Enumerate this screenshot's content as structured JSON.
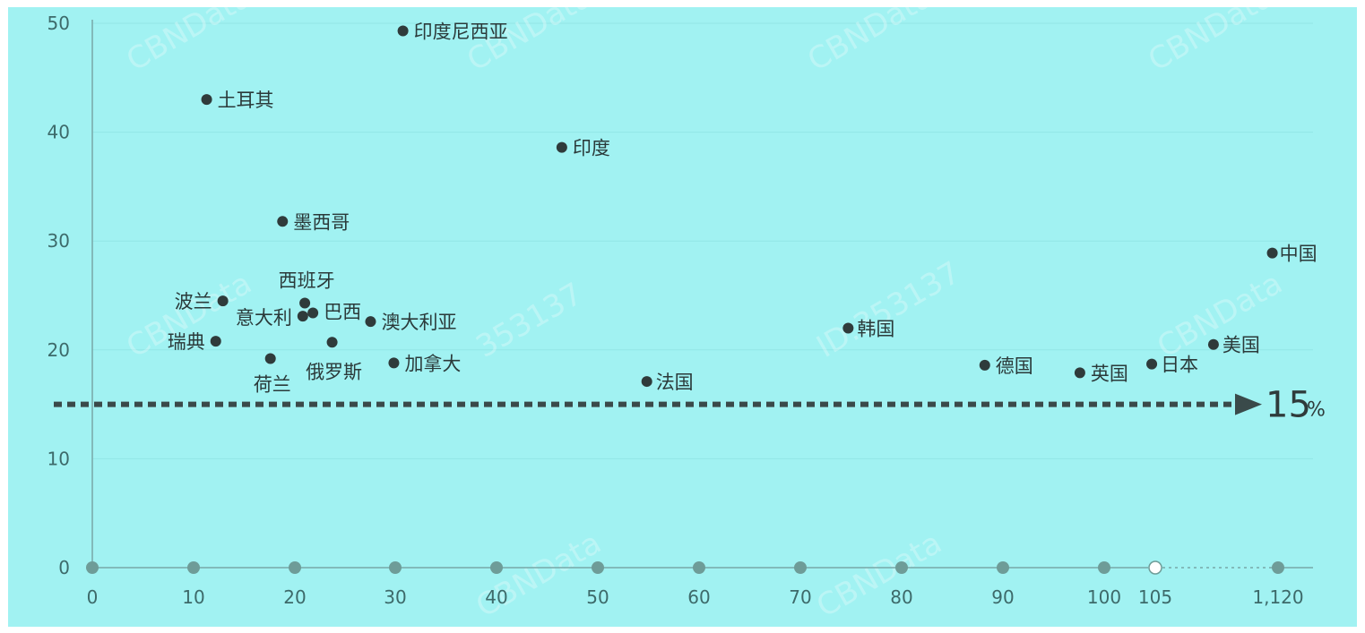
{
  "chart_data": {
    "type": "scatter",
    "title": "",
    "xlabel": "",
    "ylabel": "",
    "background_color": "#a1f2f2",
    "point_color": "#2f3b3b",
    "axis_color": "#78a8a8",
    "x_ticks": [
      "0",
      "10",
      "20",
      "30",
      "40",
      "50",
      "60",
      "70",
      "80",
      "90",
      "100",
      "105",
      "1,120"
    ],
    "y_ticks": [
      "0",
      "10",
      "20",
      "30",
      "40",
      "50"
    ],
    "ylim": [
      0,
      50
    ],
    "axis_break_marker": {
      "x": "105",
      "style": "hollow-circle",
      "continuation": "dotted"
    },
    "reference_line": {
      "y": 15,
      "label": "15",
      "unit": "%",
      "style": "dashed-arrow"
    },
    "points": [
      {
        "label": "印度尼西亚",
        "x": 30.7,
        "y": 49.3
      },
      {
        "label": "土耳其",
        "x": 11.3,
        "y": 43.0
      },
      {
        "label": "印度",
        "x": 46.4,
        "y": 38.6
      },
      {
        "label": "墨西哥",
        "x": 18.8,
        "y": 31.8
      },
      {
        "label": "中国",
        "x": 1110,
        "y": 28.9
      },
      {
        "label": "西班牙",
        "x": 21.0,
        "y": 24.3
      },
      {
        "label": "波兰",
        "x": 12.9,
        "y": 24.5
      },
      {
        "label": "意大利",
        "x": 20.8,
        "y": 23.1
      },
      {
        "label": "巴西",
        "x": 21.8,
        "y": 23.4
      },
      {
        "label": "澳大利亚",
        "x": 27.5,
        "y": 22.6
      },
      {
        "label": "韩国",
        "x": 74.7,
        "y": 22.0
      },
      {
        "label": "瑞典",
        "x": 12.2,
        "y": 20.8
      },
      {
        "label": "俄罗斯",
        "x": 23.7,
        "y": 20.7
      },
      {
        "label": "美国",
        "x": 110.8,
        "y": 20.5
      },
      {
        "label": "荷兰",
        "x": 17.6,
        "y": 19.2
      },
      {
        "label": "加拿大",
        "x": 29.8,
        "y": 18.8
      },
      {
        "label": "日本",
        "x": 104.7,
        "y": 18.7
      },
      {
        "label": "德国",
        "x": 88.2,
        "y": 18.6
      },
      {
        "label": "英国",
        "x": 97.6,
        "y": 17.9
      },
      {
        "label": "法国",
        "x": 54.8,
        "y": 17.1
      }
    ]
  },
  "watermarks": [
    "CBNData",
    "CBNData ID:353137",
    "CBNData ID:353137",
    "CBNData ID:353137",
    "353137",
    "ID:353137",
    "CBNData",
    "CBNData",
    "CBNData"
  ]
}
